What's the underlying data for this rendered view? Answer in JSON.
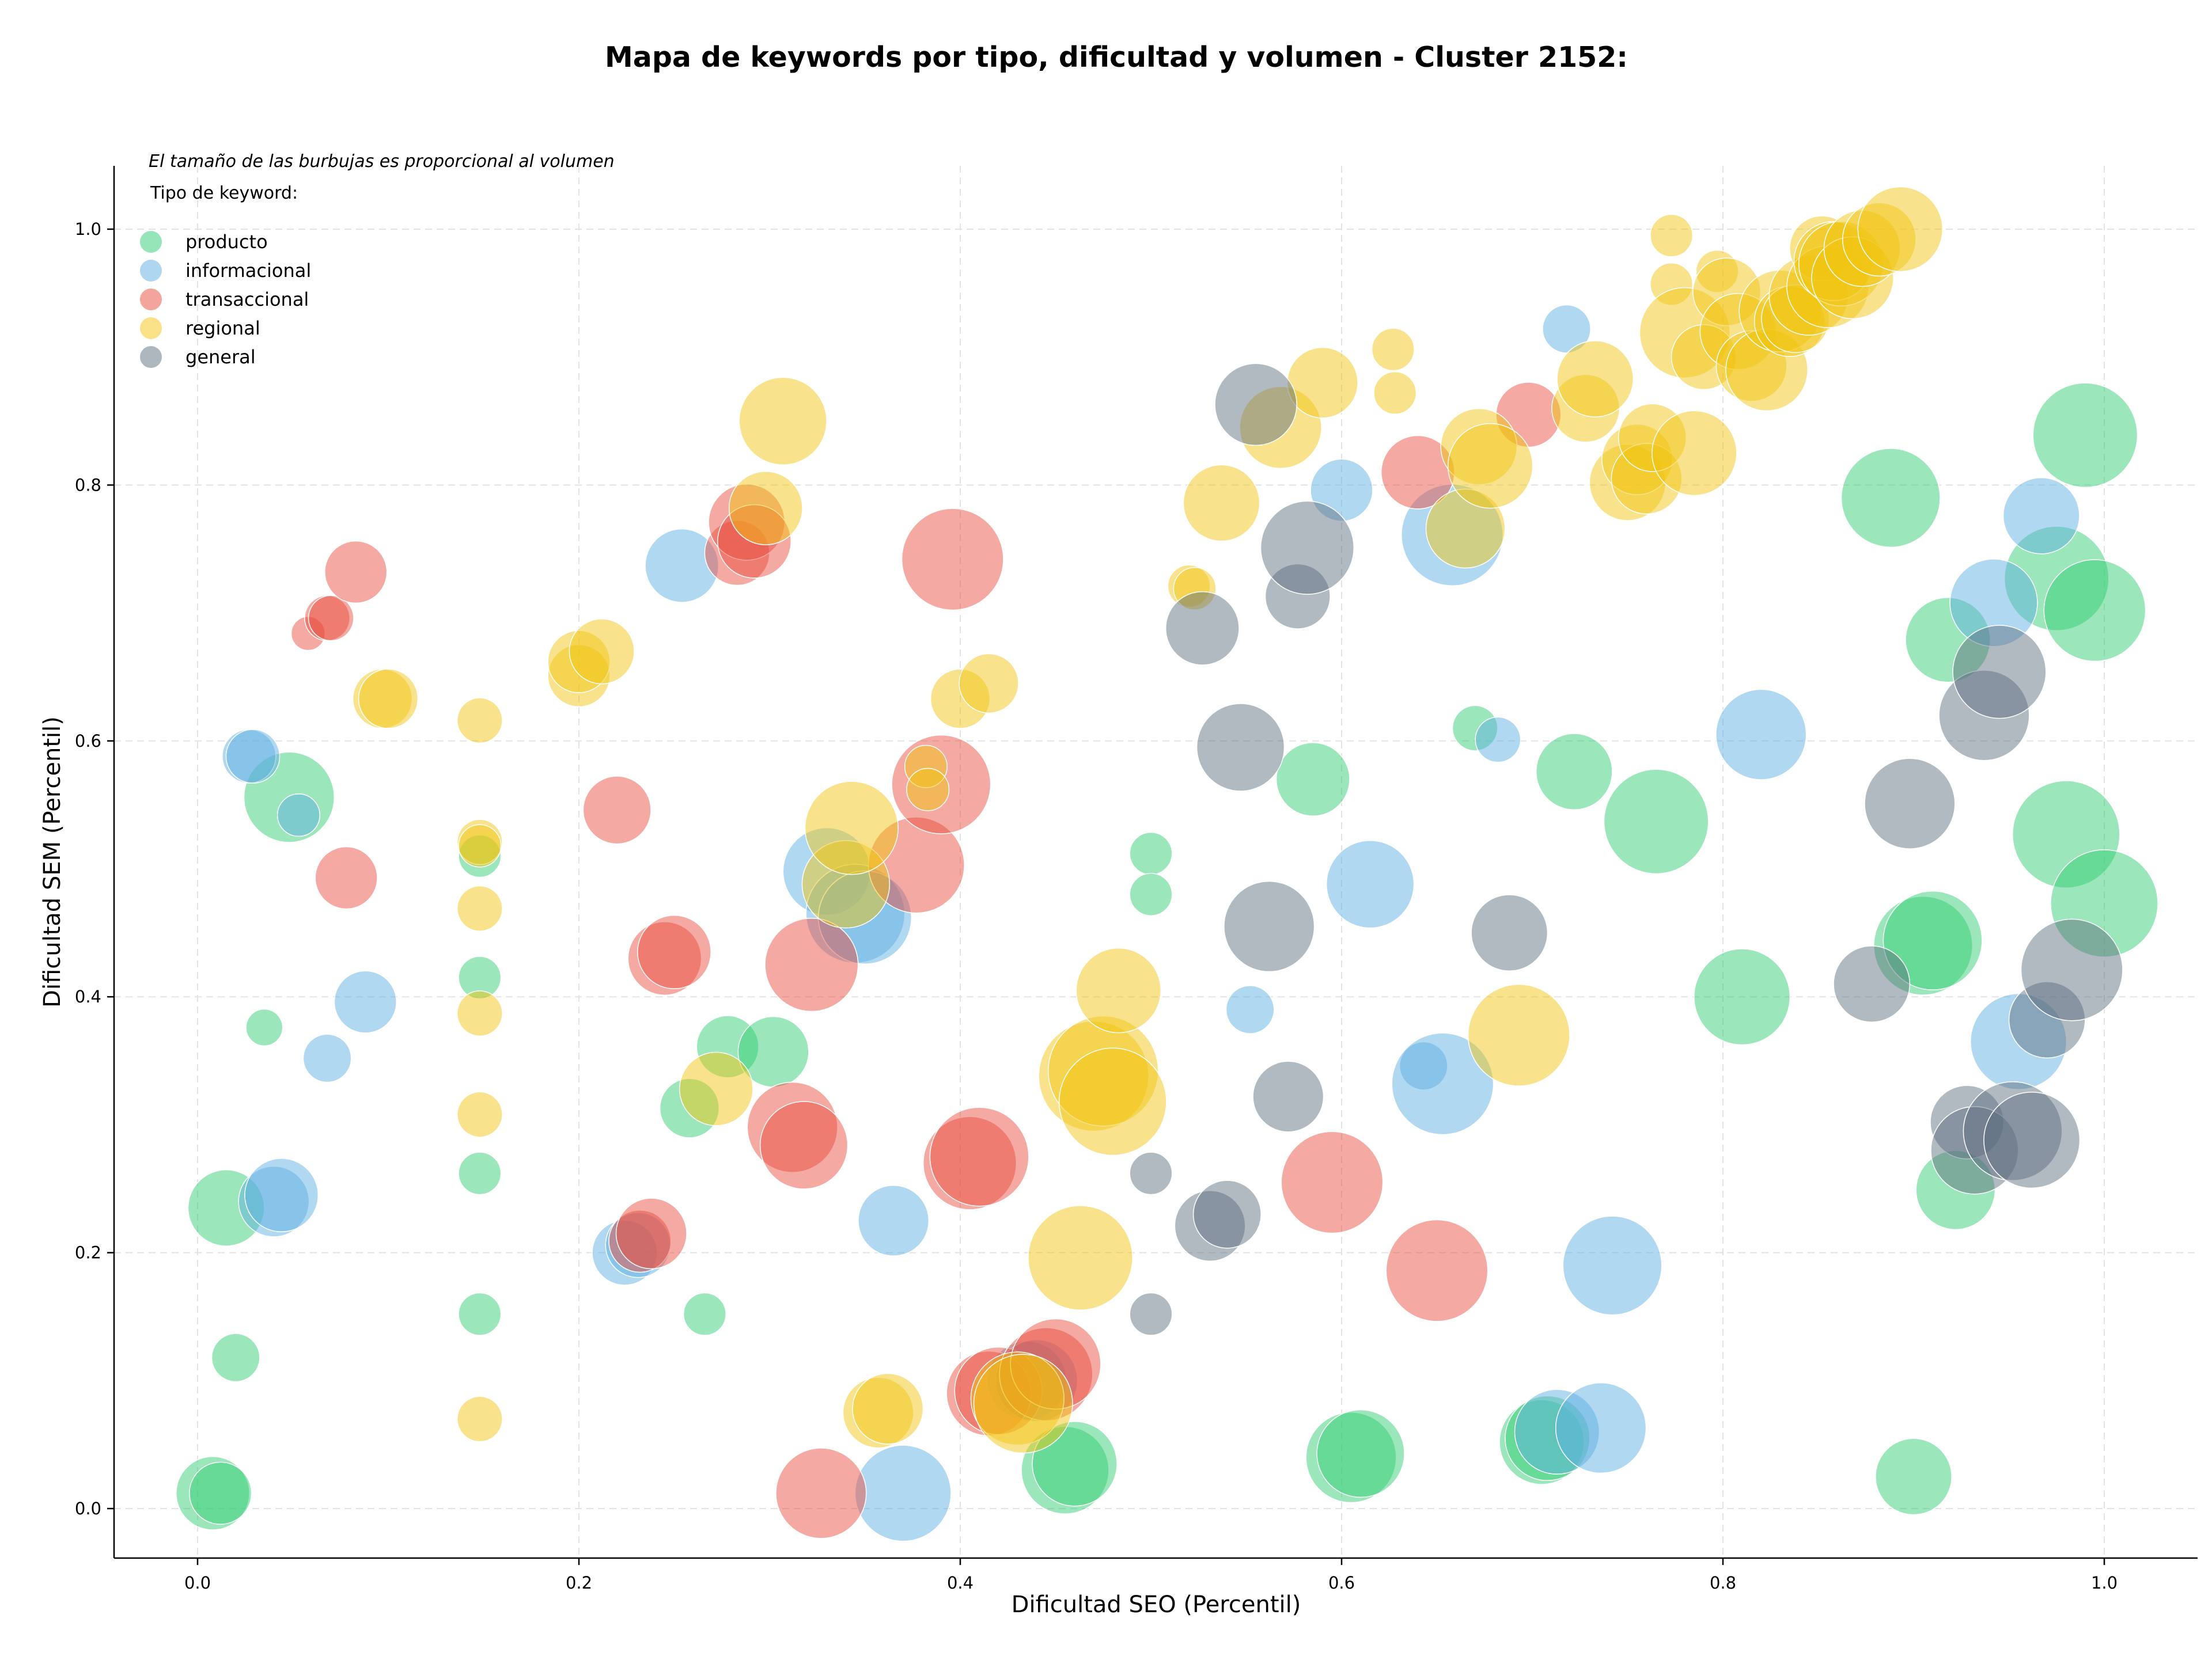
{
  "chart_data": {
    "type": "scatter",
    "title": "Mapa de keywords por tipo, dificultad y volumen - Cluster 2152:",
    "xlabel": "Dificultad SEO (Percentil)",
    "ylabel": "Dificultad SEM (Percentil)",
    "xlim": [
      -0.045,
      1.05
    ],
    "ylim": [
      -0.035,
      1.05
    ],
    "x_ticks": [
      "0.0",
      "0.2",
      "0.4",
      "0.6",
      "0.8",
      "1.0"
    ],
    "y_ticks": [
      "0.0",
      "0.2",
      "0.4",
      "0.6",
      "0.8",
      "1.0"
    ],
    "grid": true,
    "note": "El tamaño de las burbujas es proporcional al volumen",
    "legend_title": "Tipo de keyword:",
    "legend_position": "top-left",
    "series": [
      {
        "name": "producto",
        "color": "#2ecc71",
        "points": [
          [
            0.008,
            0.012,
            26
          ],
          [
            0.012,
            0.012,
            22
          ],
          [
            0.02,
            0.118,
            17
          ],
          [
            0.015,
            0.235,
            27
          ],
          [
            0.035,
            0.376,
            13
          ],
          [
            0.048,
            0.556,
            32
          ],
          [
            0.148,
            0.51,
            15
          ],
          [
            0.148,
            0.415,
            15
          ],
          [
            0.148,
            0.262,
            15
          ],
          [
            0.148,
            0.152,
            15
          ],
          [
            0.258,
            0.313,
            21
          ],
          [
            0.266,
            0.152,
            15
          ],
          [
            0.278,
            0.361,
            22
          ],
          [
            0.302,
            0.357,
            25
          ],
          [
            0.455,
            0.03,
            31
          ],
          [
            0.46,
            0.035,
            30
          ],
          [
            0.5,
            0.512,
            15
          ],
          [
            0.5,
            0.48,
            15
          ],
          [
            0.585,
            0.57,
            26
          ],
          [
            0.605,
            0.04,
            32
          ],
          [
            0.61,
            0.043,
            31
          ],
          [
            0.67,
            0.61,
            16
          ],
          [
            0.705,
            0.052,
            30
          ],
          [
            0.708,
            0.055,
            30
          ],
          [
            0.722,
            0.576,
            27
          ],
          [
            0.765,
            0.537,
            37
          ],
          [
            0.81,
            0.4,
            34
          ],
          [
            0.888,
            0.79,
            35
          ],
          [
            0.9,
            0.025,
            27
          ],
          [
            0.905,
            0.44,
            35
          ],
          [
            0.91,
            0.444,
            35
          ],
          [
            0.918,
            0.679,
            30
          ],
          [
            0.922,
            0.249,
            28
          ],
          [
            0.975,
            0.727,
            37
          ],
          [
            0.98,
            0.527,
            38
          ],
          [
            0.99,
            0.839,
            37
          ],
          [
            0.995,
            0.702,
            36
          ],
          [
            1.0,
            0.473,
            38
          ]
        ]
      },
      {
        "name": "informacional",
        "color": "#5dade2",
        "points": [
          [
            0.027,
            0.588,
            19
          ],
          [
            0.029,
            0.588,
            19
          ],
          [
            0.053,
            0.542,
            15
          ],
          [
            0.068,
            0.352,
            17
          ],
          [
            0.088,
            0.396,
            22
          ],
          [
            0.04,
            0.24,
            25
          ],
          [
            0.044,
            0.245,
            26
          ],
          [
            0.224,
            0.2,
            23
          ],
          [
            0.231,
            0.206,
            23
          ],
          [
            0.254,
            0.737,
            26
          ],
          [
            0.33,
            0.498,
            31
          ],
          [
            0.345,
            0.465,
            35
          ],
          [
            0.35,
            0.462,
            33
          ],
          [
            0.365,
            0.225,
            25
          ],
          [
            0.37,
            0.012,
            34
          ],
          [
            0.435,
            0.1,
            28
          ],
          [
            0.44,
            0.1,
            29
          ],
          [
            0.552,
            0.39,
            17
          ],
          [
            0.6,
            0.796,
            22
          ],
          [
            0.615,
            0.488,
            31
          ],
          [
            0.643,
            0.346,
            17
          ],
          [
            0.653,
            0.332,
            36
          ],
          [
            0.658,
            0.761,
            36
          ],
          [
            0.682,
            0.601,
            16
          ],
          [
            0.713,
            0.06,
            30
          ],
          [
            0.718,
            0.922,
            17
          ],
          [
            0.736,
            0.063,
            32
          ],
          [
            0.742,
            0.19,
            35
          ],
          [
            0.82,
            0.605,
            32
          ],
          [
            0.942,
            0.708,
            31
          ],
          [
            0.955,
            0.365,
            34
          ],
          [
            0.967,
            0.776,
            27
          ]
        ]
      },
      {
        "name": "transaccional",
        "color": "#e74c3c",
        "points": [
          [
            0.058,
            0.684,
            12
          ],
          [
            0.068,
            0.696,
            16
          ],
          [
            0.07,
            0.696,
            16
          ],
          [
            0.078,
            0.493,
            22
          ],
          [
            0.083,
            0.732,
            22
          ],
          [
            0.22,
            0.546,
            24
          ],
          [
            0.232,
            0.209,
            22
          ],
          [
            0.238,
            0.215,
            25
          ],
          [
            0.245,
            0.43,
            26
          ],
          [
            0.25,
            0.435,
            26
          ],
          [
            0.283,
            0.747,
            23
          ],
          [
            0.288,
            0.771,
            27
          ],
          [
            0.292,
            0.756,
            26
          ],
          [
            0.312,
            0.298,
            32
          ],
          [
            0.318,
            0.284,
            31
          ],
          [
            0.322,
            0.425,
            33
          ],
          [
            0.327,
            0.012,
            32
          ],
          [
            0.377,
            0.503,
            34
          ],
          [
            0.39,
            0.566,
            35
          ],
          [
            0.396,
            0.742,
            36
          ],
          [
            0.405,
            0.27,
            33
          ],
          [
            0.41,
            0.275,
            35
          ],
          [
            0.415,
            0.09,
            30
          ],
          [
            0.42,
            0.092,
            31
          ],
          [
            0.445,
            0.105,
            33
          ],
          [
            0.45,
            0.113,
            32
          ],
          [
            0.595,
            0.255,
            36
          ],
          [
            0.64,
            0.81,
            26
          ],
          [
            0.65,
            0.186,
            36
          ],
          [
            0.698,
            0.855,
            23
          ]
        ]
      },
      {
        "name": "regional",
        "color": "#f1c40f",
        "points": [
          [
            0.097,
            0.633,
            21
          ],
          [
            0.1,
            0.633,
            21
          ],
          [
            0.148,
            0.616,
            16
          ],
          [
            0.148,
            0.521,
            16
          ],
          [
            0.148,
            0.518,
            15
          ],
          [
            0.148,
            0.469,
            16
          ],
          [
            0.148,
            0.387,
            16
          ],
          [
            0.148,
            0.308,
            16
          ],
          [
            0.148,
            0.07,
            16
          ],
          [
            0.2,
            0.651,
            22
          ],
          [
            0.2,
            0.662,
            22
          ],
          [
            0.212,
            0.67,
            23
          ],
          [
            0.272,
            0.328,
            26
          ],
          [
            0.298,
            0.782,
            26
          ],
          [
            0.307,
            0.85,
            31
          ],
          [
            0.34,
            0.488,
            31
          ],
          [
            0.343,
            0.532,
            33
          ],
          [
            0.357,
            0.075,
            25
          ],
          [
            0.362,
            0.078,
            25
          ],
          [
            0.382,
            0.58,
            15
          ],
          [
            0.383,
            0.562,
            15
          ],
          [
            0.4,
            0.633,
            21
          ],
          [
            0.415,
            0.645,
            21
          ],
          [
            0.43,
            0.086,
            33
          ],
          [
            0.433,
            0.082,
            35
          ],
          [
            0.463,
            0.196,
            37
          ],
          [
            0.47,
            0.338,
            39
          ],
          [
            0.475,
            0.342,
            39
          ],
          [
            0.48,
            0.318,
            38
          ],
          [
            0.483,
            0.405,
            30
          ],
          [
            0.52,
            0.721,
            15
          ],
          [
            0.523,
            0.719,
            15
          ],
          [
            0.537,
            0.786,
            27
          ],
          [
            0.568,
            0.845,
            29
          ],
          [
            0.59,
            0.88,
            25
          ],
          [
            0.627,
            0.906,
            15
          ],
          [
            0.628,
            0.872,
            15
          ],
          [
            0.665,
            0.766,
            28
          ],
          [
            0.672,
            0.83,
            27
          ],
          [
            0.678,
            0.815,
            30
          ],
          [
            0.693,
            0.37,
            36
          ],
          [
            0.728,
            0.86,
            24
          ],
          [
            0.733,
            0.883,
            27
          ],
          [
            0.75,
            0.802,
            27
          ],
          [
            0.755,
            0.82,
            25
          ],
          [
            0.76,
            0.805,
            25
          ],
          [
            0.763,
            0.837,
            24
          ],
          [
            0.773,
            0.995,
            15
          ],
          [
            0.773,
            0.957,
            15
          ],
          [
            0.78,
            0.919,
            32
          ],
          [
            0.785,
            0.825,
            30
          ],
          [
            0.79,
            0.9,
            23
          ],
          [
            0.797,
            0.967,
            15
          ],
          [
            0.802,
            0.951,
            24
          ],
          [
            0.808,
            0.92,
            27
          ],
          [
            0.815,
            0.893,
            25
          ],
          [
            0.823,
            0.89,
            29
          ],
          [
            0.83,
            0.936,
            29
          ],
          [
            0.835,
            0.928,
            25
          ],
          [
            0.838,
            0.93,
            24
          ],
          [
            0.845,
            0.948,
            28
          ],
          [
            0.852,
            0.985,
            23
          ],
          [
            0.855,
            0.955,
            29
          ],
          [
            0.858,
            0.975,
            28
          ],
          [
            0.862,
            0.973,
            30
          ],
          [
            0.868,
            0.962,
            29
          ],
          [
            0.873,
            0.985,
            27
          ],
          [
            0.882,
            0.992,
            26
          ],
          [
            0.893,
            1.0,
            30
          ]
        ]
      },
      {
        "name": "general",
        "color": "#5d6d7e",
        "points": [
          [
            0.5,
            0.262,
            15
          ],
          [
            0.5,
            0.152,
            15
          ],
          [
            0.531,
            0.221,
            25
          ],
          [
            0.54,
            0.23,
            24
          ],
          [
            0.527,
            0.688,
            26
          ],
          [
            0.547,
            0.595,
            31
          ],
          [
            0.555,
            0.863,
            29
          ],
          [
            0.562,
            0.455,
            32
          ],
          [
            0.572,
            0.322,
            25
          ],
          [
            0.577,
            0.713,
            23
          ],
          [
            0.582,
            0.751,
            33
          ],
          [
            0.688,
            0.45,
            27
          ],
          [
            0.878,
            0.41,
            27
          ],
          [
            0.898,
            0.551,
            32
          ],
          [
            0.928,
            0.302,
            26
          ],
          [
            0.932,
            0.28,
            31
          ],
          [
            0.937,
            0.62,
            32
          ],
          [
            0.945,
            0.654,
            33
          ],
          [
            0.952,
            0.295,
            35
          ],
          [
            0.962,
            0.288,
            34
          ],
          [
            0.97,
            0.382,
            27
          ],
          [
            0.983,
            0.421,
            36
          ]
        ]
      }
    ]
  }
}
